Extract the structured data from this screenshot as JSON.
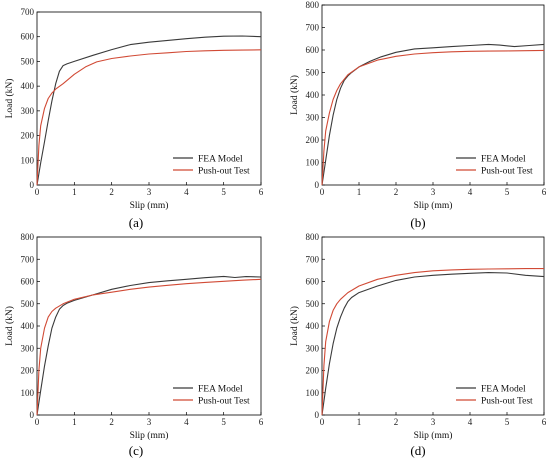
{
  "figure": {
    "colors": {
      "fea": "#3a3a3a",
      "test": "#d14a35",
      "axis": "#000000"
    }
  },
  "chart_data": [
    {
      "type": "line",
      "panel_label": "(a)",
      "xlabel": "Slip (mm)",
      "ylabel": "Load (kN)",
      "xlim": [
        0,
        6
      ],
      "ylim": [
        0,
        700
      ],
      "xticks": [
        "0",
        "1",
        "2",
        "3",
        "4",
        "5",
        "6"
      ],
      "yticks": [
        "0",
        "100",
        "200",
        "300",
        "400",
        "500",
        "600",
        "700"
      ],
      "grid": false,
      "legend_position": "bottom-right",
      "series": [
        {
          "name": "FEA Model",
          "color": "#3a3a3a",
          "x": [
            0,
            0.1,
            0.2,
            0.3,
            0.4,
            0.5,
            0.6,
            0.7,
            0.8,
            1.0,
            1.5,
            2.0,
            2.5,
            3.0,
            3.5,
            4.0,
            4.5,
            5.0,
            5.5,
            6.0
          ],
          "y": [
            0,
            90,
            175,
            260,
            340,
            410,
            460,
            483,
            490,
            500,
            525,
            548,
            568,
            578,
            585,
            592,
            598,
            602,
            603,
            600
          ]
        },
        {
          "name": "Push-out Test",
          "color": "#d14a35",
          "x": [
            0,
            0.05,
            0.1,
            0.2,
            0.3,
            0.4,
            0.5,
            0.7,
            1.0,
            1.3,
            1.6,
            2.0,
            2.5,
            3.0,
            3.5,
            4.0,
            4.5,
            5.0,
            5.5,
            6.0
          ],
          "y": [
            0,
            160,
            240,
            310,
            350,
            372,
            388,
            410,
            448,
            478,
            498,
            512,
            522,
            530,
            535,
            540,
            543,
            545,
            546,
            547
          ]
        }
      ]
    },
    {
      "type": "line",
      "panel_label": "(b)",
      "xlabel": "Slip (mm)",
      "ylabel": "Load (kN)",
      "xlim": [
        0,
        6
      ],
      "ylim": [
        0,
        800
      ],
      "xticks": [
        "0",
        "1",
        "2",
        "3",
        "4",
        "5",
        "6"
      ],
      "yticks": [
        "0",
        "100",
        "200",
        "300",
        "400",
        "500",
        "600",
        "700",
        "800"
      ],
      "grid": false,
      "legend_position": "bottom-right",
      "series": [
        {
          "name": "FEA Model",
          "color": "#3a3a3a",
          "x": [
            0,
            0.1,
            0.2,
            0.3,
            0.4,
            0.5,
            0.6,
            0.7,
            0.8,
            1.0,
            1.3,
            1.6,
            2.0,
            2.5,
            3.0,
            3.5,
            4.0,
            4.5,
            4.8,
            5.2,
            5.6,
            6.0
          ],
          "y": [
            0,
            110,
            220,
            310,
            380,
            430,
            465,
            485,
            500,
            525,
            550,
            570,
            590,
            605,
            610,
            615,
            620,
            625,
            622,
            615,
            620,
            625
          ]
        },
        {
          "name": "Push-out Test",
          "color": "#d14a35",
          "x": [
            0,
            0.05,
            0.1,
            0.2,
            0.3,
            0.4,
            0.5,
            0.7,
            1.0,
            1.5,
            2.0,
            2.5,
            3.0,
            3.5,
            4.0,
            4.5,
            5.0,
            5.5,
            6.0
          ],
          "y": [
            0,
            150,
            240,
            320,
            380,
            420,
            450,
            490,
            525,
            555,
            572,
            582,
            588,
            592,
            594,
            595,
            596,
            597,
            598
          ]
        }
      ]
    },
    {
      "type": "line",
      "panel_label": "(c)",
      "xlabel": "Slip (mm)",
      "ylabel": "Load (kN)",
      "xlim": [
        0,
        6
      ],
      "ylim": [
        0,
        800
      ],
      "xticks": [
        "0",
        "1",
        "2",
        "3",
        "4",
        "5",
        "6"
      ],
      "yticks": [
        "0",
        "100",
        "200",
        "300",
        "400",
        "500",
        "600",
        "700",
        "800"
      ],
      "grid": false,
      "legend_position": "bottom-right",
      "series": [
        {
          "name": "FEA Model",
          "color": "#3a3a3a",
          "x": [
            0,
            0.1,
            0.2,
            0.3,
            0.4,
            0.5,
            0.6,
            0.7,
            0.8,
            1.0,
            1.5,
            2.0,
            2.5,
            3.0,
            3.5,
            4.0,
            4.5,
            5.0,
            5.3,
            5.6,
            6.0
          ],
          "y": [
            0,
            110,
            220,
            310,
            390,
            440,
            475,
            492,
            502,
            515,
            540,
            565,
            582,
            595,
            603,
            610,
            617,
            623,
            618,
            622,
            620
          ]
        },
        {
          "name": "Push-out Test",
          "color": "#d14a35",
          "x": [
            0,
            0.05,
            0.1,
            0.2,
            0.3,
            0.4,
            0.5,
            0.7,
            1.0,
            1.5,
            2.0,
            2.5,
            3.0,
            3.5,
            4.0,
            4.5,
            5.0,
            5.5,
            6.0
          ],
          "y": [
            0,
            200,
            300,
            390,
            440,
            465,
            480,
            500,
            520,
            540,
            552,
            565,
            575,
            583,
            590,
            596,
            601,
            606,
            610
          ]
        }
      ]
    },
    {
      "type": "line",
      "panel_label": "(d)",
      "xlabel": "Slip (mm)",
      "ylabel": "Load (kN)",
      "xlim": [
        0,
        6
      ],
      "ylim": [
        0,
        800
      ],
      "xticks": [
        "0",
        "1",
        "2",
        "3",
        "4",
        "5",
        "6"
      ],
      "yticks": [
        "0",
        "100",
        "200",
        "300",
        "400",
        "500",
        "600",
        "700",
        "800"
      ],
      "grid": false,
      "legend_position": "bottom-right",
      "series": [
        {
          "name": "FEA Model",
          "color": "#3a3a3a",
          "x": [
            0,
            0.1,
            0.2,
            0.3,
            0.4,
            0.5,
            0.6,
            0.7,
            0.8,
            1.0,
            1.5,
            2.0,
            2.5,
            3.0,
            3.5,
            4.0,
            4.5,
            5.0,
            5.5,
            6.0
          ],
          "y": [
            0,
            120,
            230,
            320,
            390,
            440,
            480,
            510,
            528,
            550,
            580,
            605,
            620,
            628,
            633,
            637,
            640,
            638,
            628,
            622
          ]
        },
        {
          "name": "Push-out Test",
          "color": "#d14a35",
          "x": [
            0,
            0.05,
            0.1,
            0.2,
            0.3,
            0.4,
            0.5,
            0.7,
            1.0,
            1.5,
            2.0,
            2.5,
            3.0,
            3.5,
            4.0,
            4.5,
            5.0,
            5.5,
            6.0
          ],
          "y": [
            0,
            220,
            330,
            420,
            470,
            500,
            520,
            550,
            580,
            610,
            628,
            640,
            648,
            652,
            655,
            656,
            657,
            658,
            658
          ]
        }
      ]
    }
  ]
}
